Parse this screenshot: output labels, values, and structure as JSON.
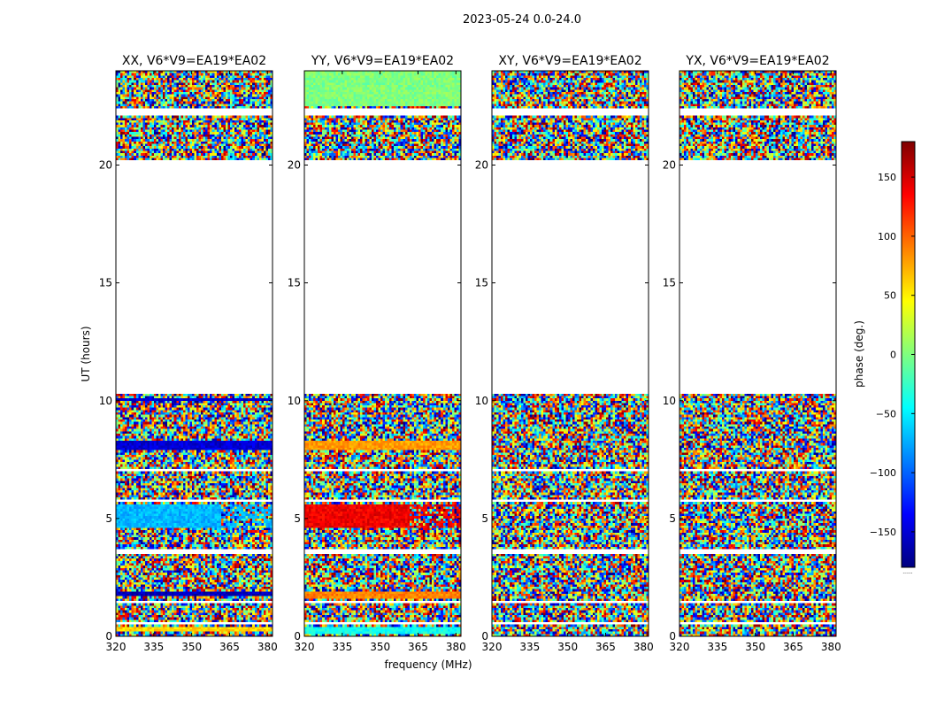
{
  "figure": {
    "suptitle": "2023-05-24 0.0-24.0",
    "xlabel": "frequency (MHz)",
    "ylabel": "UT (hours)"
  },
  "colorbar": {
    "label": "phase (deg.)",
    "range": [
      -180,
      180
    ],
    "ticks": [
      150,
      100,
      50,
      0,
      -50,
      -100,
      -150
    ],
    "tick_labels": [
      "150",
      "100",
      "50",
      "0",
      "−50",
      "−100",
      "−150"
    ],
    "cmap": [
      "#00007f",
      "#0000ff",
      "#007fff",
      "#00ffff",
      "#7fff7f",
      "#ffff00",
      "#ff7f00",
      "#ff0000",
      "#7f0000"
    ],
    "footer": "......"
  },
  "chart_data": [
    {
      "type": "heatmap",
      "title": "XX, V6*V9=EA19*EA02",
      "xlabel": "",
      "ylabel": "UT (hours)",
      "xlim": [
        320,
        382
      ],
      "ylim": [
        0,
        24
      ],
      "xticks": [
        320,
        335,
        350,
        365,
        380
      ],
      "yticks": [
        0,
        5,
        10,
        15,
        20
      ],
      "value": "phase (deg.)",
      "no_data_ranges_hours": [
        [
          10.3,
          20.2
        ],
        [
          22.1,
          22.4
        ],
        [
          1.4,
          1.55
        ],
        [
          0.5,
          0.6
        ],
        [
          3.55,
          3.65
        ],
        [
          4.45,
          4.55
        ],
        [
          5.7,
          5.8
        ],
        [
          7.0,
          7.1
        ]
      ],
      "coherent_bands": [
        {
          "from_hours": 0.2,
          "to_hours": 0.4,
          "phase_deg": 60
        },
        {
          "from_hours": 1.75,
          "to_hours": 1.95,
          "phase_deg": -160
        },
        {
          "from_hours": 4.6,
          "to_hours": 5.6,
          "phase_deg": -70,
          "until_mhz": 362
        },
        {
          "from_hours": 7.95,
          "to_hours": 8.3,
          "phase_deg": -150
        },
        {
          "from_hours": 10.0,
          "to_hours": 10.15,
          "phase_deg": -150
        }
      ]
    },
    {
      "type": "heatmap",
      "title": "YY, V6*V9=EA19*EA02",
      "xlabel": "frequency (MHz)",
      "ylabel": "",
      "xlim": [
        320,
        382
      ],
      "ylim": [
        0,
        24
      ],
      "xticks": [
        320,
        335,
        350,
        365,
        380
      ],
      "yticks": [
        0,
        5,
        10,
        15,
        20
      ],
      "value": "phase (deg.)",
      "no_data_ranges_hours": [
        [
          10.3,
          20.2
        ],
        [
          22.1,
          22.4
        ],
        [
          1.4,
          1.55
        ],
        [
          0.5,
          0.6
        ],
        [
          3.55,
          3.65
        ],
        [
          4.45,
          4.55
        ],
        [
          5.7,
          5.8
        ],
        [
          7.0,
          7.1
        ]
      ],
      "coherent_bands": [
        {
          "from_hours": 0.1,
          "to_hours": 0.45,
          "phase_deg": -40
        },
        {
          "from_hours": 1.6,
          "to_hours": 1.85,
          "phase_deg": 90
        },
        {
          "from_hours": 4.6,
          "to_hours": 5.6,
          "phase_deg": 140,
          "until_mhz": 362
        },
        {
          "from_hours": 7.95,
          "to_hours": 8.3,
          "phase_deg": 80
        },
        {
          "from_hours": 22.5,
          "to_hours": 24.0,
          "phase_deg": 0
        }
      ]
    },
    {
      "type": "heatmap",
      "title": "XY, V6*V9=EA19*EA02",
      "xlabel": "",
      "ylabel": "",
      "xlim": [
        320,
        382
      ],
      "ylim": [
        0,
        24
      ],
      "xticks": [
        320,
        335,
        350,
        365,
        380
      ],
      "yticks": [
        0,
        5,
        10,
        15,
        20
      ],
      "value": "phase (deg.)",
      "no_data_ranges_hours": [
        [
          10.3,
          20.2
        ],
        [
          22.1,
          22.4
        ],
        [
          1.4,
          1.55
        ],
        [
          0.5,
          0.6
        ],
        [
          3.55,
          3.65
        ],
        [
          4.45,
          4.55
        ],
        [
          5.7,
          5.8
        ],
        [
          7.0,
          7.1
        ]
      ],
      "coherent_bands": []
    },
    {
      "type": "heatmap",
      "title": "YX, V6*V9=EA19*EA02",
      "xlabel": "",
      "ylabel": "",
      "xlim": [
        320,
        382
      ],
      "ylim": [
        0,
        24
      ],
      "xticks": [
        320,
        335,
        350,
        365,
        380
      ],
      "yticks": [
        0,
        5,
        10,
        15,
        20
      ],
      "value": "phase (deg.)",
      "no_data_ranges_hours": [
        [
          10.3,
          20.2
        ],
        [
          22.1,
          22.4
        ],
        [
          1.4,
          1.55
        ],
        [
          0.5,
          0.6
        ],
        [
          3.55,
          3.65
        ],
        [
          4.45,
          4.55
        ],
        [
          5.7,
          5.8
        ],
        [
          7.0,
          7.1
        ]
      ],
      "coherent_bands": []
    }
  ]
}
